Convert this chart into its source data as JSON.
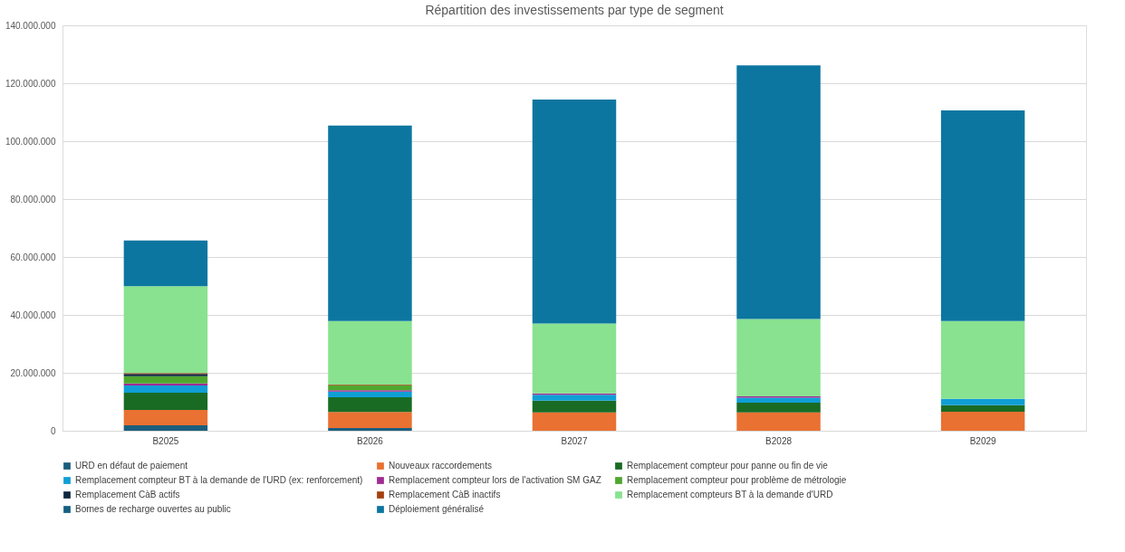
{
  "chart_data": {
    "type": "bar",
    "title": "Répartition des investissements par type de segment",
    "stacked": true,
    "categories": [
      "B2025",
      "B2026",
      "B2027",
      "B2028",
      "B2029"
    ],
    "series": [
      {
        "name": "URD en défaut de paiement",
        "color": "#1a5e7e",
        "values": [
          1900000,
          900000,
          0,
          0,
          0
        ]
      },
      {
        "name": "Nouveaux raccordements",
        "color": "#e97132",
        "values": [
          5300000,
          5600000,
          6300000,
          6300000,
          6600000
        ]
      },
      {
        "name": "Remplacement compteur pour panne ou fin de vie",
        "color": "#196b24",
        "values": [
          5900000,
          5100000,
          4100000,
          3400000,
          2200000
        ]
      },
      {
        "name": "Remplacement compteur BT à la demande de l'URD (ex: renforcement)",
        "color": "#0f9ed5",
        "values": [
          2500000,
          1900000,
          2000000,
          1700000,
          2200000
        ]
      },
      {
        "name": "Remplacement compteur lors de l'activation SM GAZ",
        "color": "#a02b93",
        "values": [
          700000,
          500000,
          500000,
          500000,
          0
        ]
      },
      {
        "name": "Remplacement compteur pour problème de métrologie",
        "color": "#4ea72e",
        "values": [
          2500000,
          1700000,
          0,
          0,
          0
        ]
      },
      {
        "name": "Remplacement CàB actifs",
        "color": "#0e2841",
        "values": [
          800000,
          0,
          0,
          0,
          0
        ]
      },
      {
        "name": "Remplacement CàB inactifs",
        "color": "#a5400f",
        "values": [
          300000,
          200000,
          0,
          0,
          0
        ]
      },
      {
        "name": "Remplacement compteurs BT à la demande d'URD",
        "color": "#88e290",
        "values": [
          30000000,
          22000000,
          24100000,
          26700000,
          26900000
        ]
      },
      {
        "name": "Bornes de recharge ouvertes au public",
        "color": "#155f82",
        "values": [
          0,
          0,
          0,
          0,
          0
        ]
      },
      {
        "name": "Déploiement généralisé",
        "color": "#0c76a0",
        "values": [
          15800000,
          67500000,
          77400000,
          87600000,
          72700000
        ]
      }
    ],
    "ylim": [
      0,
      140000000
    ],
    "yticks": [
      {
        "value": 0,
        "label": "0"
      },
      {
        "value": 20000000,
        "label": "20.000.000"
      },
      {
        "value": 40000000,
        "label": "40.000.000"
      },
      {
        "value": 60000000,
        "label": "60.000.000"
      },
      {
        "value": 80000000,
        "label": "80.000.000"
      },
      {
        "value": 100000000,
        "label": "100.000.000"
      },
      {
        "value": 120000000,
        "label": "120.000.000"
      },
      {
        "value": 140000000,
        "label": "140.000.000"
      }
    ],
    "grid": "y",
    "legend": "bottom"
  }
}
